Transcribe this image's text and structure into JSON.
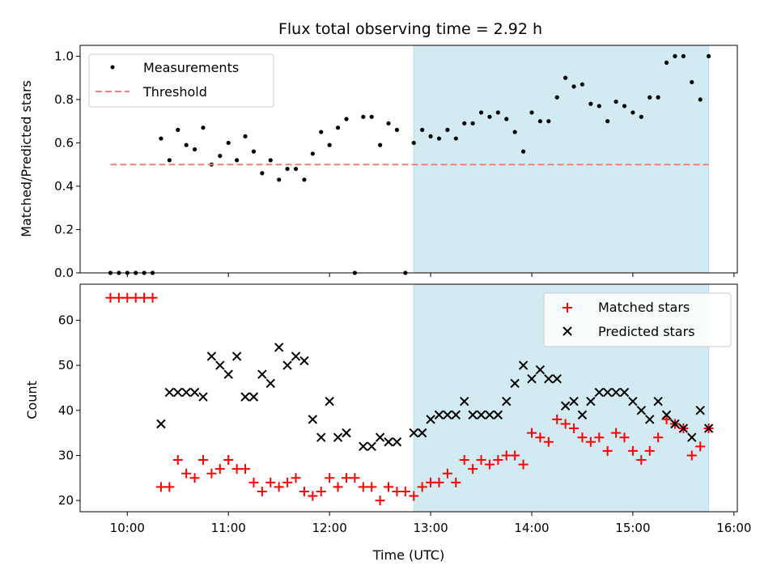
{
  "chart_data": [
    {
      "type": "scatter",
      "title": "Flux total observing time = 2.92 h",
      "xlabel": "",
      "ylabel": "Matched/Predicted stars",
      "xlim": [
        "09:32",
        "16:02"
      ],
      "ylim": [
        0,
        1.05
      ],
      "yticks": [
        0.0,
        0.2,
        0.4,
        0.6,
        0.8,
        1.0
      ],
      "ytick_labels": [
        "0.0",
        "0.2",
        "0.4",
        "0.6",
        "0.8",
        "1.0"
      ],
      "shaded_region": {
        "x_start": "12:50",
        "x_end": "15:45",
        "color": "#add8e6"
      },
      "legend": {
        "position": "upper-left",
        "entries": [
          "Measurements",
          "Threshold"
        ]
      },
      "series": [
        {
          "name": "Measurements",
          "marker": "dot",
          "color": "#000000",
          "x": [
            "09:50",
            "09:55",
            "10:00",
            "10:05",
            "10:10",
            "10:15",
            "10:20",
            "10:25",
            "10:30",
            "10:35",
            "10:40",
            "10:45",
            "10:50",
            "10:55",
            "11:00",
            "11:05",
            "11:10",
            "11:15",
            "11:20",
            "11:25",
            "11:30",
            "11:35",
            "11:40",
            "11:45",
            "11:50",
            "11:55",
            "12:00",
            "12:05",
            "12:10",
            "12:15",
            "12:20",
            "12:25",
            "12:30",
            "12:35",
            "12:40",
            "12:45",
            "12:50",
            "12:55",
            "13:00",
            "13:05",
            "13:10",
            "13:15",
            "13:20",
            "13:25",
            "13:30",
            "13:35",
            "13:40",
            "13:45",
            "13:50",
            "13:55",
            "14:00",
            "14:05",
            "14:10",
            "14:15",
            "14:20",
            "14:25",
            "14:30",
            "14:35",
            "14:40",
            "14:45",
            "14:50",
            "14:55",
            "15:00",
            "15:05",
            "15:10",
            "15:15",
            "15:20",
            "15:25",
            "15:30",
            "15:35",
            "15:40",
            "15:45"
          ],
          "values": [
            0.0,
            0.0,
            0.0,
            0.0,
            0.0,
            0.0,
            0.62,
            0.52,
            0.66,
            0.59,
            0.57,
            0.67,
            0.5,
            0.54,
            0.6,
            0.52,
            0.63,
            0.56,
            0.46,
            0.52,
            0.43,
            0.48,
            0.48,
            0.43,
            0.55,
            0.65,
            0.59,
            0.67,
            0.71,
            0.0,
            0.72,
            0.72,
            0.59,
            0.69,
            0.66,
            0.0,
            0.6,
            0.66,
            0.63,
            0.62,
            0.66,
            0.62,
            0.69,
            0.69,
            0.74,
            0.72,
            0.74,
            0.71,
            0.65,
            0.56,
            0.74,
            0.7,
            0.7,
            0.81,
            0.9,
            0.86,
            0.87,
            0.78,
            0.77,
            0.7,
            0.79,
            0.77,
            0.74,
            0.72,
            0.81,
            0.81,
            0.97,
            1.0,
            1.0,
            0.88,
            0.8,
            1.0
          ]
        },
        {
          "name": "Threshold",
          "style": "dashed",
          "color": "#f08080",
          "x": [
            "09:50",
            "15:45"
          ],
          "values": [
            0.5,
            0.5
          ]
        }
      ]
    },
    {
      "type": "scatter",
      "title": "",
      "xlabel": "Time (UTC)",
      "ylabel": "Count",
      "xlim": [
        "09:32",
        "16:02"
      ],
      "ylim": [
        17.5,
        68
      ],
      "yticks": [
        20,
        30,
        40,
        50,
        60
      ],
      "ytick_labels": [
        "20",
        "30",
        "40",
        "50",
        "60"
      ],
      "xticks": [
        "10:00",
        "11:00",
        "12:00",
        "13:00",
        "14:00",
        "15:00",
        "16:00"
      ],
      "xtick_labels": [
        "10:00",
        "11:00",
        "12:00",
        "13:00",
        "14:00",
        "15:00",
        "16:00"
      ],
      "shaded_region": {
        "x_start": "12:50",
        "x_end": "15:45",
        "color": "#add8e6"
      },
      "legend": {
        "position": "upper-right",
        "entries": [
          "Matched stars",
          "Predicted stars"
        ]
      },
      "series": [
        {
          "name": "Matched stars",
          "marker": "plus",
          "color": "#ff0000",
          "x": [
            "09:50",
            "09:55",
            "10:00",
            "10:05",
            "10:10",
            "10:15",
            "10:20",
            "10:25",
            "10:30",
            "10:35",
            "10:40",
            "10:45",
            "10:50",
            "10:55",
            "11:00",
            "11:05",
            "11:10",
            "11:15",
            "11:20",
            "11:25",
            "11:30",
            "11:35",
            "11:40",
            "11:45",
            "11:50",
            "11:55",
            "12:00",
            "12:05",
            "12:10",
            "12:15",
            "12:20",
            "12:25",
            "12:30",
            "12:35",
            "12:40",
            "12:45",
            "12:50",
            "12:55",
            "13:00",
            "13:05",
            "13:10",
            "13:15",
            "13:20",
            "13:25",
            "13:30",
            "13:35",
            "13:40",
            "13:45",
            "13:50",
            "13:55",
            "14:00",
            "14:05",
            "14:10",
            "14:15",
            "14:20",
            "14:25",
            "14:30",
            "14:35",
            "14:40",
            "14:45",
            "14:50",
            "14:55",
            "15:00",
            "15:05",
            "15:10",
            "15:15",
            "15:20",
            "15:25",
            "15:30",
            "15:35",
            "15:40",
            "15:45"
          ],
          "values": [
            65,
            65,
            65,
            65,
            65,
            65,
            23,
            23,
            29,
            26,
            25,
            29,
            26,
            27,
            29,
            27,
            27,
            24,
            22,
            24,
            23,
            24,
            25,
            22,
            21,
            22,
            25,
            23,
            25,
            25,
            23,
            23,
            20,
            23,
            22,
            22,
            21,
            23,
            24,
            24,
            26,
            24,
            29,
            27,
            29,
            28,
            29,
            30,
            30,
            28,
            35,
            34,
            33,
            38,
            37,
            36,
            34,
            33,
            34,
            31,
            35,
            34,
            31,
            29,
            31,
            34,
            38,
            37,
            36,
            30,
            32,
            36
          ]
        },
        {
          "name": "Predicted stars",
          "marker": "x",
          "color": "#000000",
          "x": [
            "10:20",
            "10:25",
            "10:30",
            "10:35",
            "10:40",
            "10:45",
            "10:50",
            "10:55",
            "11:00",
            "11:05",
            "11:10",
            "11:15",
            "11:20",
            "11:25",
            "11:30",
            "11:35",
            "11:40",
            "11:45",
            "11:50",
            "11:55",
            "12:00",
            "12:05",
            "12:10",
            "12:20",
            "12:25",
            "12:30",
            "12:35",
            "12:40",
            "12:50",
            "12:55",
            "13:00",
            "13:05",
            "13:10",
            "13:15",
            "13:20",
            "13:25",
            "13:30",
            "13:35",
            "13:40",
            "13:45",
            "13:50",
            "13:55",
            "14:00",
            "14:05",
            "14:10",
            "14:15",
            "14:20",
            "14:25",
            "14:30",
            "14:35",
            "14:40",
            "14:45",
            "14:50",
            "14:55",
            "15:00",
            "15:05",
            "15:10",
            "15:15",
            "15:20",
            "15:25",
            "15:30",
            "15:35",
            "15:40",
            "15:45"
          ],
          "values": [
            37,
            44,
            44,
            44,
            44,
            43,
            52,
            50,
            48,
            52,
            43,
            43,
            48,
            46,
            54,
            50,
            52,
            51,
            38,
            34,
            42,
            34,
            35,
            32,
            32,
            34,
            33,
            33,
            35,
            35,
            38,
            39,
            39,
            39,
            42,
            39,
            39,
            39,
            39,
            42,
            46,
            50,
            47,
            49,
            47,
            47,
            41,
            42,
            39,
            42,
            44,
            44,
            44,
            44,
            42,
            40,
            38,
            42,
            39,
            37,
            36,
            34,
            40,
            36
          ]
        }
      ]
    }
  ]
}
